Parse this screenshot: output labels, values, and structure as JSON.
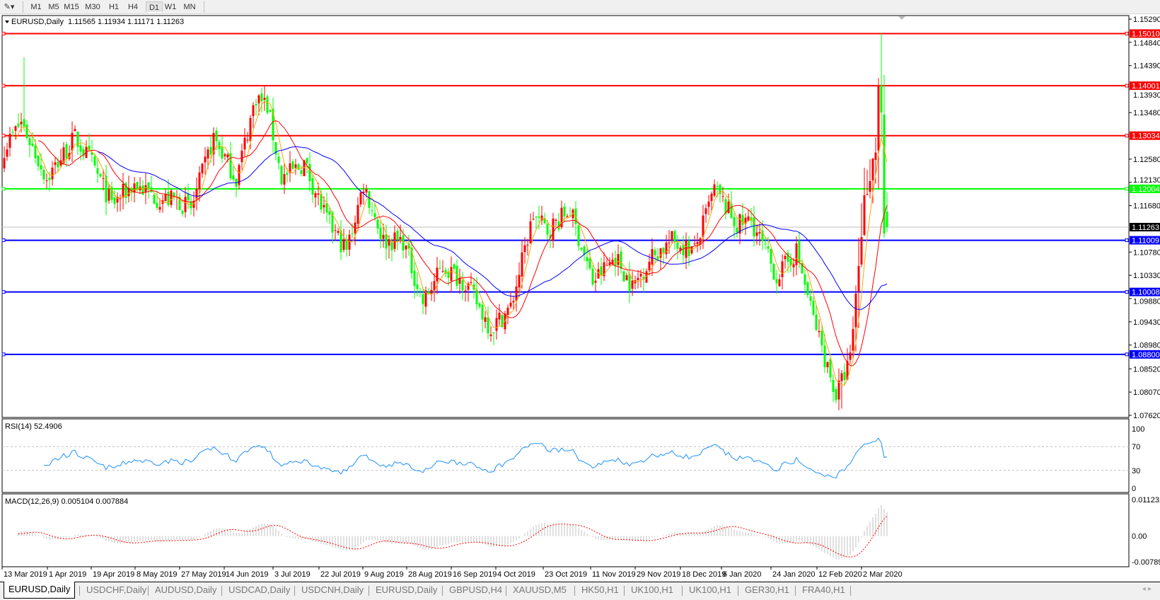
{
  "toolbar": {
    "timeframes": [
      "M1",
      "M5",
      "M15",
      "M30",
      "H1",
      "H4",
      "D1",
      "W1",
      "MN"
    ],
    "active": "D1"
  },
  "chart": {
    "symbol_header": "EURUSD,Daily",
    "ohlc": "1.11565 1.11934 1.11171 1.11263",
    "current_price": 1.11263,
    "current_price_label": "1.11263",
    "price_axis": {
      "min": 1.0762,
      "max": 1.1529,
      "ticks": [
        "1.15290",
        "1.14840",
        "1.14390",
        "1.13930",
        "1.13480",
        "1.12580",
        "1.12130",
        "1.11680",
        "1.10780",
        "1.10330",
        "1.09880",
        "1.09430",
        "1.08980",
        "1.08520",
        "1.08070",
        "1.07620"
      ]
    },
    "horizontal_lines": [
      {
        "price": 1.1501,
        "label": "1.15010",
        "color": "#ff0000"
      },
      {
        "price": 1.14001,
        "label": "1.14001",
        "color": "#ff0000"
      },
      {
        "price": 1.13034,
        "label": "1.13034",
        "color": "#ff0000"
      },
      {
        "price": 1.12004,
        "label": "1.12004",
        "color": "#00ff00"
      },
      {
        "price": 1.11009,
        "label": "1.11009",
        "color": "#0000ff"
      },
      {
        "price": 1.10008,
        "label": "1.10008",
        "color": "#0000ff"
      },
      {
        "price": 1.088,
        "label": "1.08800",
        "color": "#0000ff"
      }
    ],
    "colors": {
      "bull": "#ff0000",
      "bear": "#00ff00",
      "ma_fast": "#ffa500",
      "ma_mid": "#ff0000",
      "ma_slow": "#0000ff",
      "rsi": "#1e90ff",
      "macd_hist": "#c0c0c0",
      "macd_signal": "#ff0000"
    },
    "date_labels": [
      "13 Mar 2019",
      "1 Apr 2019",
      "19 Apr 2019",
      "8 May 2019",
      "27 May 2019",
      "14 Jun 2019",
      "3 Jul 2019",
      "22 Jul 2019",
      "9 Aug 2019",
      "28 Aug 2019",
      "16 Sep 2019",
      "4 Oct 2019",
      "23 Oct 2019",
      "11 Nov 2019",
      "29 Nov 2019",
      "18 Dec 2019",
      "6 Jan 2020",
      "24 Jan 2020",
      "12 Feb 2020",
      "2 Mar 2020"
    ]
  },
  "chart_data": {
    "type": "candlestick",
    "bars": 313,
    "approx_close_path": [
      [
        0,
        1.128
      ],
      [
        6,
        1.133
      ],
      [
        15,
        1.122
      ],
      [
        25,
        1.13
      ],
      [
        31,
        1.125
      ],
      [
        38,
        1.117
      ],
      [
        46,
        1.121
      ],
      [
        55,
        1.118
      ],
      [
        61,
        1.118
      ],
      [
        66,
        1.116
      ],
      [
        74,
        1.13
      ],
      [
        82,
        1.122
      ],
      [
        89,
        1.138
      ],
      [
        93,
        1.136
      ],
      [
        98,
        1.122
      ],
      [
        106,
        1.125
      ],
      [
        114,
        1.114
      ],
      [
        121,
        1.108
      ],
      [
        127,
        1.121
      ],
      [
        134,
        1.11
      ],
      [
        141,
        1.11
      ],
      [
        148,
        1.098
      ],
      [
        155,
        1.105
      ],
      [
        163,
        1.102
      ],
      [
        172,
        1.093
      ],
      [
        179,
        1.097
      ],
      [
        187,
        1.115
      ],
      [
        192,
        1.112
      ],
      [
        200,
        1.116
      ],
      [
        208,
        1.102
      ],
      [
        216,
        1.107
      ],
      [
        222,
        1.101
      ],
      [
        229,
        1.107
      ],
      [
        236,
        1.11
      ],
      [
        244,
        1.108
      ],
      [
        251,
        1.12
      ],
      [
        259,
        1.113
      ],
      [
        264,
        1.114
      ],
      [
        273,
        1.103
      ],
      [
        280,
        1.108
      ],
      [
        286,
        1.095
      ],
      [
        294,
        1.08
      ],
      [
        299,
        1.087
      ],
      [
        304,
        1.118
      ],
      [
        308,
        1.128
      ],
      [
        309,
        1.14
      ],
      [
        310,
        1.135
      ],
      [
        311,
        1.11
      ],
      [
        312,
        1.11263
      ]
    ]
  },
  "rsi": {
    "label": "RSI(14) 52.4906",
    "ticks": [
      "100",
      "70",
      "30",
      "0"
    ],
    "levels": [
      70,
      30
    ]
  },
  "macd": {
    "label": "MACD(12,26,9) 0.005104 0.007884",
    "max": 0.011232,
    "min": -0.007894,
    "ticks": [
      "0.011232",
      "0.00",
      "-0.007894"
    ]
  },
  "tabs": [
    "EURUSD,Daily",
    "USDCHF,Daily",
    "AUDUSD,Daily",
    "USDCAD,Daily",
    "USDCNH,Daily",
    "EURUSD,Daily",
    "GBPUSD,H4",
    "XAUUSD,M5",
    "HK50,H1",
    "UK100,H1",
    "UK100,H1",
    "GER30,H1",
    "FRA40,H1"
  ],
  "active_tab": 0
}
